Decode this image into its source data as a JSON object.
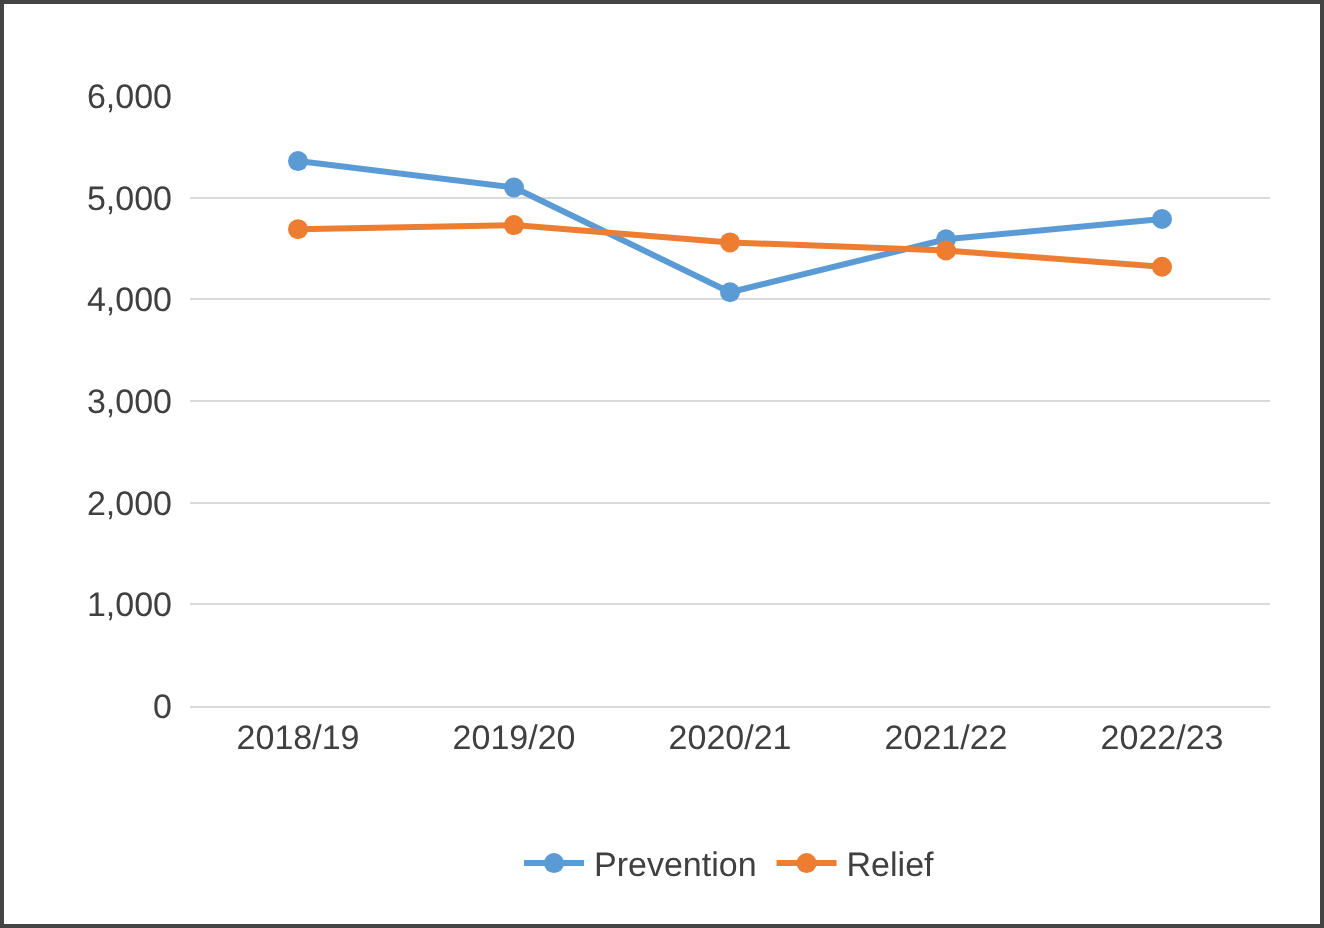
{
  "chart_data": {
    "type": "line",
    "categories": [
      "2018/19",
      "2019/20",
      "2020/21",
      "2021/22",
      "2022/23"
    ],
    "series": [
      {
        "name": "Prevention",
        "color": "#5b9bd5",
        "values": [
          5360,
          5100,
          4070,
          4590,
          4790
        ]
      },
      {
        "name": "Relief",
        "color": "#ed7d31",
        "values": [
          4690,
          4730,
          4560,
          4480,
          4320
        ]
      }
    ],
    "ylim": [
      0,
      6000
    ],
    "yticks": [
      {
        "value": 0,
        "label": "0"
      },
      {
        "value": 1000,
        "label": "1,000"
      },
      {
        "value": 2000,
        "label": "2,000"
      },
      {
        "value": 3000,
        "label": "3,000"
      },
      {
        "value": 4000,
        "label": "4,000"
      },
      {
        "value": 5000,
        "label": "5,000"
      },
      {
        "value": 6000,
        "label": "6,000"
      }
    ],
    "grid": "y",
    "legend": "bottom",
    "marker": "circle",
    "line_style": "solid"
  }
}
